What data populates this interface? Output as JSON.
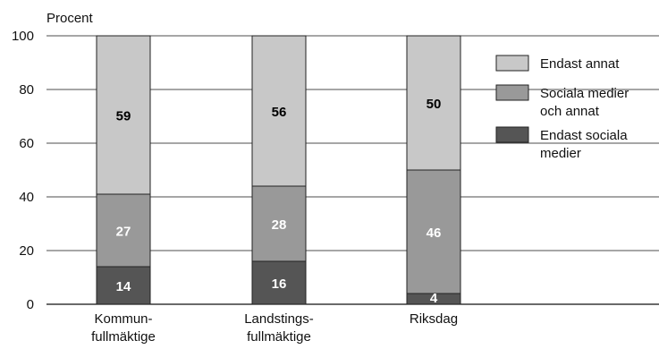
{
  "chart_data": {
    "type": "bar",
    "stacked": true,
    "ylabel": "Procent",
    "xlabel": "",
    "ylim": [
      0,
      100
    ],
    "yticks": [
      0,
      20,
      40,
      60,
      80,
      100
    ],
    "grid": true,
    "legend_position": "right",
    "categories": [
      [
        "Kommun-",
        "fullmäktige"
      ],
      [
        "Landstings-",
        "fullmäktige"
      ],
      [
        "Riksdag"
      ]
    ],
    "series": [
      {
        "name": [
          "Endast sociala",
          "medier"
        ],
        "values": [
          14,
          16,
          4
        ],
        "color": "#555555",
        "label_color": "#ffffff"
      },
      {
        "name": [
          "Sociala medier",
          "och annat"
        ],
        "values": [
          27,
          28,
          46
        ],
        "color": "#999999",
        "label_color": "#ffffff"
      },
      {
        "name": [
          "Endast annat"
        ],
        "values": [
          59,
          56,
          50
        ],
        "color": "#c8c8c8",
        "label_color": "#000000"
      }
    ],
    "legend_order": [
      2,
      1,
      0
    ]
  }
}
